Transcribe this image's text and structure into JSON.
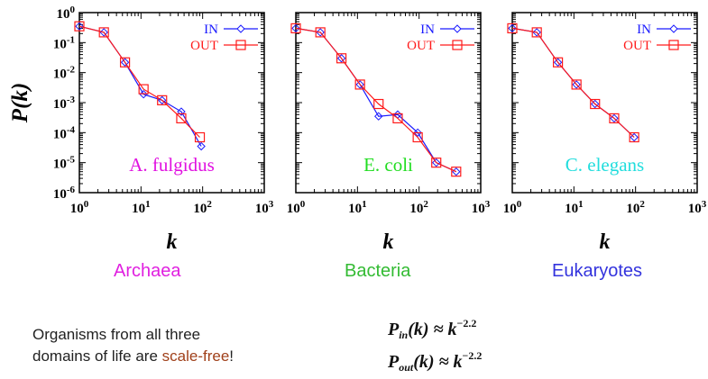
{
  "chart_data": [
    {
      "type": "line",
      "log_x": true,
      "log_y": true,
      "xlim": [
        1,
        1000
      ],
      "ylim": [
        1e-06,
        1
      ],
      "ylabel": "P(k)",
      "xlabel": "k",
      "annotation": "A. fulgidus",
      "annotation_color": "#e010e0",
      "legend": "top-right",
      "series": [
        {
          "name": "IN",
          "color": "#1a1aff",
          "marker": "diamond",
          "x": [
            1,
            2.5,
            5.5,
            11,
            22,
            45,
            95
          ],
          "y": [
            0.35,
            0.22,
            0.022,
            0.0019,
            0.0012,
            0.0005,
            3.5e-05
          ]
        },
        {
          "name": "OUT",
          "color": "#ff1a1a",
          "marker": "square",
          "x": [
            1,
            2.5,
            5.5,
            11,
            22,
            45,
            90
          ],
          "y": [
            0.35,
            0.22,
            0.022,
            0.0028,
            0.0012,
            0.0003,
            7e-05
          ]
        }
      ]
    },
    {
      "type": "line",
      "log_x": true,
      "log_y": true,
      "xlim": [
        1,
        1000
      ],
      "ylim": [
        1e-06,
        1
      ],
      "xlabel": "k",
      "annotation": "E. coli",
      "annotation_color": "#22dd22",
      "legend": "top-right",
      "series": [
        {
          "name": "IN",
          "color": "#1a1aff",
          "marker": "diamond",
          "x": [
            1,
            2.5,
            5.5,
            11,
            22,
            45,
            95,
            190,
            400
          ],
          "y": [
            0.3,
            0.22,
            0.03,
            0.004,
            0.00035,
            0.0004,
            0.0001,
            1e-05,
            5e-06
          ]
        },
        {
          "name": "OUT",
          "color": "#ff1a1a",
          "marker": "square",
          "x": [
            1,
            2.5,
            5.5,
            11,
            22,
            45,
            95,
            190,
            400
          ],
          "y": [
            0.3,
            0.22,
            0.03,
            0.004,
            0.0009,
            0.0003,
            7e-05,
            1e-05,
            5e-06
          ]
        }
      ]
    },
    {
      "type": "line",
      "log_x": true,
      "log_y": true,
      "xlim": [
        1,
        1000
      ],
      "ylim": [
        1e-06,
        1
      ],
      "xlabel": "k",
      "annotation": "C. elegans",
      "annotation_color": "#22dddd",
      "legend": "top-right",
      "series": [
        {
          "name": "IN",
          "color": "#1a1aff",
          "marker": "diamond",
          "x": [
            1,
            2.5,
            5.5,
            11,
            22,
            45,
            95
          ],
          "y": [
            0.3,
            0.22,
            0.022,
            0.004,
            0.0009,
            0.0003,
            7e-05
          ]
        },
        {
          "name": "OUT",
          "color": "#ff1a1a",
          "marker": "square",
          "x": [
            1,
            2.5,
            5.5,
            11,
            22,
            45,
            95
          ],
          "y": [
            0.3,
            0.22,
            0.022,
            0.004,
            0.0009,
            0.0003,
            7e-05
          ]
        }
      ]
    }
  ],
  "panel_titles": [
    {
      "text": "Archaea",
      "color": "#e020e0"
    },
    {
      "text": "Bacteria",
      "color": "#33bb33"
    },
    {
      "text": "Eukaryotes",
      "color": "#3333dd"
    }
  ],
  "footer": {
    "line1": "Organisms from all three",
    "line2_prefix": "domains of life are ",
    "line2_highlight": "scale-free",
    "line2_suffix": "!"
  },
  "equations": {
    "in_symbol": "P",
    "in_sub": "in",
    "in_arg": "(k) ≈ k",
    "in_exp": "−2.2",
    "out_symbol": "P",
    "out_sub": "out",
    "out_arg": "(k) ≈ k",
    "out_exp": "−2.2"
  }
}
